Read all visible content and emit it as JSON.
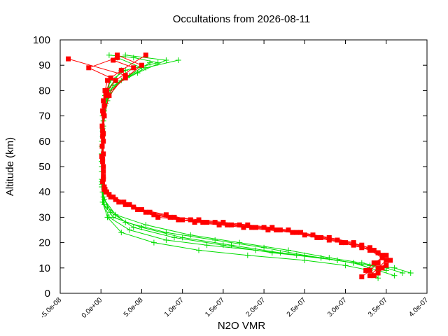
{
  "chart_data": {
    "type": "line",
    "title": "Occultations from 2026-08-11",
    "xlabel": "N2O VMR",
    "ylabel": "Altitude (km)",
    "xlim": [
      -5e-08,
      4e-07
    ],
    "ylim": [
      0,
      100
    ],
    "x_ticks": [
      "-5.0e-08",
      "0.0e+00",
      "5.0e-08",
      "1.0e-07",
      "1.5e-07",
      "2.0e-07",
      "2.5e-07",
      "3.0e-07",
      "3.5e-07",
      "4.0e-07"
    ],
    "x_tick_values": [
      -5e-08,
      0,
      5e-08,
      1e-07,
      1.5e-07,
      2e-07,
      2.5e-07,
      3e-07,
      3.5e-07,
      4e-07
    ],
    "y_ticks": [
      "0",
      "10",
      "20",
      "30",
      "40",
      "50",
      "60",
      "70",
      "80",
      "90",
      "100"
    ],
    "y_tick_values": [
      0,
      10,
      20,
      30,
      40,
      50,
      60,
      70,
      80,
      90,
      100
    ],
    "grid": false,
    "legend": "none",
    "series": [
      {
        "color": "#00dd00",
        "marker": "plus",
        "profiles": [
          {
            "x": [
              3.4e-07,
              3.3e-07,
              3e-07,
              2.5e-07,
              1.8e-07,
              1.2e-07,
              6.5e-08,
              2.5e-08,
              8e-09,
              2e-09,
              1e-09,
              1e-09,
              1e-09,
              2e-09,
              5e-09,
              1.2e-08,
              3e-08,
              7e-08,
              4e-08,
              1e-08
            ],
            "y": [
              6,
              9,
              11,
              13,
              15,
              17,
              20,
              24,
              30,
              36,
              42,
              50,
              60,
              70,
              78,
              84,
              88,
              91,
              93,
              94
            ]
          },
          {
            "x": [
              3.6e-07,
              3.4e-07,
              3.1e-07,
              2.7e-07,
              2.1e-07,
              1.5e-07,
              9e-08,
              4e-08,
              1.2e-08,
              3e-09,
              1e-09,
              1e-09,
              2e-09,
              6e-09,
              1.5e-08,
              4.5e-08,
              8e-08,
              3e-08
            ],
            "y": [
              7,
              9,
              12,
              14,
              16,
              19,
              22,
              26,
              32,
              38,
              45,
              55,
              65,
              75,
              82,
              87,
              92,
              94
            ]
          },
          {
            "x": [
              3.7e-07,
              3.5e-07,
              3.2e-07,
              2.8e-07,
              2.3e-07,
              1.7e-07,
              1.1e-07,
              5.5e-08,
              1.8e-08,
              4e-09,
              1e-09,
              1e-09,
              3e-09,
              8e-09,
              2e-08,
              5e-08,
              2e-08
            ],
            "y": [
              8,
              10,
              12,
              14,
              17,
              20,
              23,
              27,
              31,
              37,
              44,
              55,
              66,
              76,
              83,
              89,
              93
            ]
          },
          {
            "x": [
              3.5e-07,
              3.3e-07,
              2.9e-07,
              2.4e-07,
              1.9e-07,
              1.3e-07,
              8e-08,
              3.5e-08,
              1e-08,
              3e-09,
              1e-09,
              1e-09,
              2e-09,
              4e-09,
              1e-08,
              3.5e-08,
              6e-08
            ],
            "y": [
              9,
              11,
              13,
              15,
              17,
              19,
              21,
              25,
              30,
              36,
              43,
              52,
              62,
              72,
              80,
              86,
              91
            ]
          },
          {
            "x": [
              3.8e-07,
              3.6e-07,
              3.3e-07,
              2.9e-07,
              2.5e-07,
              2e-07,
              1.4e-07,
              8e-08,
              3e-08,
              8e-09,
              2e-09,
              1e-09,
              1e-09,
              3e-09,
              7e-09,
              2.5e-08,
              5.5e-08,
              9.5e-08
            ],
            "y": [
              8,
              10,
              11,
              13,
              15,
              18,
              21,
              24,
              28,
              34,
              40,
              48,
              58,
              68,
              77,
              84,
              89,
              92
            ]
          },
          {
            "x": [
              3.3e-07,
              3.1e-07,
              2.7e-07,
              2.2e-07,
              1.6e-07,
              1e-07,
              5e-08,
              1.5e-08,
              4e-09,
              1e-09,
              1e-09,
              2e-09,
              5e-09,
              1e-08,
              2.5e-08
            ],
            "y": [
              10,
              12,
              14,
              16,
              19,
              22,
              26,
              30,
              35,
              42,
              52,
              64,
              74,
              81,
              88
            ]
          }
        ]
      },
      {
        "color": "#ff0000",
        "marker": "square",
        "profiles": [
          {
            "x": [
              3.2e-07,
              3.3e-07,
              3.4e-07,
              3.45e-07,
              3.3e-07,
              3e-07,
              2.7e-07,
              2.4e-07,
              2.1e-07,
              1.8e-07,
              1.5e-07,
              1.2e-07,
              9e-08,
              6e-08,
              3.5e-08,
              1.5e-08,
              5e-09,
              3e-09,
              2e-09,
              1.5e-09,
              1.5e-09,
              2e-09,
              3e-09,
              5e-09,
              8e-09,
              2.5e-08,
              5.5e-08
            ],
            "y": [
              6.5,
              9,
              12,
              15,
              18,
              20,
              22,
              24,
              26,
              27,
              28,
              29,
              30,
              32,
              35,
              38,
              41,
              46,
              52,
              58,
              66,
              72,
              76,
              80,
              84,
              88,
              94
            ]
          },
          {
            "x": [
              3.3e-07,
              3.4e-07,
              3.5e-07,
              3.4e-07,
              3.2e-07,
              2.9e-07,
              2.6e-07,
              2.3e-07,
              2e-07,
              1.7e-07,
              1.4e-07,
              1.1e-07,
              8e-08,
              5e-08,
              2.8e-08,
              1e-08,
              4e-09,
              3e-09,
              3e-09,
              3e-09,
              4e-09,
              1e-08,
              3e-08,
              -4e-08
            ],
            "y": [
              7,
              10,
              13,
              16,
              19,
              21,
              23,
              25,
              26,
              27,
              28,
              29,
              31,
              33,
              36,
              39,
              42,
              48,
              55,
              63,
              70,
              78,
              86,
              92.5
            ]
          },
          {
            "x": [
              3.4e-07,
              3.5e-07,
              3.55e-07,
              3.5e-07,
              3.35e-07,
              3.1e-07,
              2.8e-07,
              2.5e-07,
              2.2e-07,
              1.9e-07,
              1.6e-07,
              1.3e-07,
              1e-07,
              7e-08,
              4.5e-08,
              2.2e-08,
              7e-09,
              3e-09,
              2e-09,
              2e-09,
              3e-09,
              6e-09,
              1.8e-08,
              4e-08,
              1.5e-08
            ],
            "y": [
              8,
              11,
              13,
              15,
              17,
              19,
              21,
              23,
              25,
              26,
              27,
              28,
              29,
              30,
              33,
              36,
              40,
              45,
              53,
              62,
              71,
              79,
              84,
              89,
              92
            ]
          },
          {
            "x": [
              3.25e-07,
              3.35e-07,
              3.45e-07,
              3.3e-07,
              3.1e-07,
              2.8e-07,
              2.45e-07,
              2.15e-07,
              1.85e-07,
              1.55e-07,
              1.25e-07,
              9.5e-08,
              6.5e-08,
              4e-08,
              1.8e-08,
              6e-09,
              2e-09,
              1e-09,
              2e-09,
              4e-09,
              7e-09,
              1.2e-08,
              -1.5e-08,
              2e-08
            ],
            "y": [
              9,
              12,
              14,
              17,
              20,
              22,
              24,
              25,
              26,
              27,
              28,
              29,
              31,
              34,
              37,
              40,
              44,
              54,
              64,
              74,
              80,
              85,
              89,
              93
            ]
          },
          {
            "x": [
              3.35e-07,
              3.45e-07,
              3.5e-07,
              3.4e-07,
              3.2e-07,
              2.95e-07,
              2.65e-07,
              2.35e-07,
              2.05e-07,
              1.75e-07,
              1.45e-07,
              1.15e-07,
              8.5e-08,
              5.5e-08,
              3e-08,
              1.2e-08,
              4e-09,
              3e-09,
              3e-09,
              4e-09,
              6e-09,
              3e-08,
              5e-08,
              2e-08
            ],
            "y": [
              7,
              10,
              13,
              16,
              18,
              20,
              22,
              24,
              25,
              26,
              27,
              28,
              30,
              32,
              35,
              38,
              41,
              50,
              60,
              70,
              78,
              85,
              90,
              94
            ]
          }
        ]
      }
    ]
  }
}
